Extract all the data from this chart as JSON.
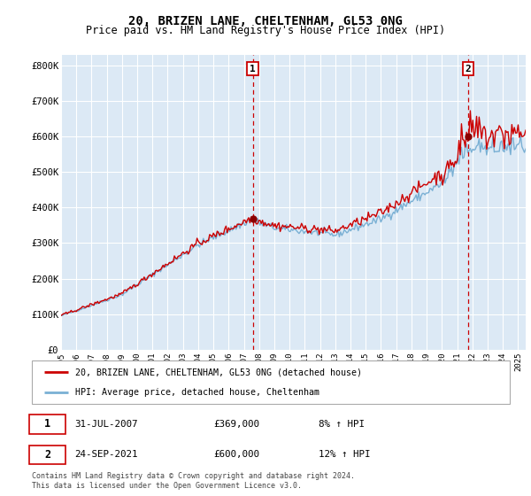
{
  "title": "20, BRIZEN LANE, CHELTENHAM, GL53 0NG",
  "subtitle": "Price paid vs. HM Land Registry's House Price Index (HPI)",
  "background_color": "#dce9f5",
  "plot_bg_color": "#dce9f5",
  "ylabel_ticks": [
    "£0",
    "£100K",
    "£200K",
    "£300K",
    "£400K",
    "£500K",
    "£600K",
    "£700K",
    "£800K"
  ],
  "ytick_values": [
    0,
    100000,
    200000,
    300000,
    400000,
    500000,
    600000,
    700000,
    800000
  ],
  "ylim": [
    0,
    830000
  ],
  "xlim_start": 1995.0,
  "xlim_end": 2025.5,
  "xtick_years": [
    1995,
    1996,
    1997,
    1998,
    1999,
    2000,
    2001,
    2002,
    2003,
    2004,
    2005,
    2006,
    2007,
    2008,
    2009,
    2010,
    2011,
    2012,
    2013,
    2014,
    2015,
    2016,
    2017,
    2018,
    2019,
    2020,
    2021,
    2022,
    2023,
    2024,
    2025
  ],
  "legend_entries": [
    "20, BRIZEN LANE, CHELTENHAM, GL53 0NG (detached house)",
    "HPI: Average price, detached house, Cheltenham"
  ],
  "legend_colors": [
    "#cc0000",
    "#6699cc"
  ],
  "marker1_x": 2007.58,
  "marker1_y": 369000,
  "marker1_label": "1",
  "marker1_date": "31-JUL-2007",
  "marker1_price": "£369,000",
  "marker1_hpi": "8% ↑ HPI",
  "marker2_x": 2021.73,
  "marker2_y": 600000,
  "marker2_label": "2",
  "marker2_date": "24-SEP-2021",
  "marker2_price": "£600,000",
  "marker2_hpi": "12% ↑ HPI",
  "red_line_color": "#cc0000",
  "blue_line_color": "#7ab0d4",
  "footnote": "Contains HM Land Registry data © Crown copyright and database right 2024.\nThis data is licensed under the Open Government Licence v3.0."
}
